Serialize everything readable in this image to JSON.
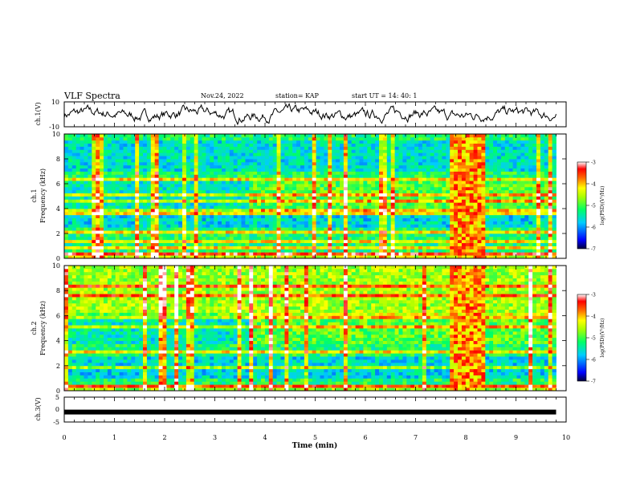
{
  "header": {
    "title": "VLF Spectra",
    "date": "Nov.24, 2022",
    "station": "station= KAP",
    "start": "start  UT =   14: 40: 1"
  },
  "chart_data": [
    {
      "type": "line",
      "panel": "ch1-waveform",
      "ylabel": "ch.1(V)",
      "ylim": [
        -10,
        10
      ],
      "yticks": [
        "10",
        "-10"
      ],
      "xlim": [
        0,
        10
      ],
      "series": [
        {
          "values_range": [
            -6,
            6
          ]
        }
      ]
    },
    {
      "type": "heatmap",
      "panel": "ch1-spectrogram",
      "ylabel": "ch.1\nFrequency (kHz)",
      "ylim": [
        0,
        10
      ],
      "yticks": [
        "0",
        "2",
        "4",
        "6",
        "8",
        "10"
      ],
      "xlim": [
        0,
        10
      ],
      "colorbar": {
        "label": "log(PSD)(V²/Hz)",
        "range": [
          -7,
          -3
        ],
        "ticks": [
          "-3",
          "-4",
          "-5",
          "-6",
          "-7"
        ]
      },
      "features": {
        "bright_band_time": [
          7.7,
          8.35
        ],
        "regime_change_time": 3.7
      }
    },
    {
      "type": "heatmap",
      "panel": "ch2-spectrogram",
      "ylabel": "ch.2\nFrequency (kHz)",
      "ylim": [
        0,
        10
      ],
      "yticks": [
        "0",
        "2",
        "4",
        "6",
        "8",
        "10"
      ],
      "xlim": [
        0,
        10
      ],
      "colorbar": {
        "label": "log(PSD)(V²/Hz)",
        "range": [
          -7,
          -3
        ],
        "ticks": [
          "-3",
          "-4",
          "-5",
          "-6",
          "-7"
        ]
      },
      "features": {
        "bright_band_time": [
          7.7,
          8.35
        ],
        "regime_change_time": 3.7
      }
    },
    {
      "type": "line",
      "panel": "ch3-waveform",
      "ylabel": "ch.3(V)",
      "ylim": [
        -5,
        5
      ],
      "yticks": [
        "5",
        "0",
        "-5"
      ],
      "xlim": [
        0,
        10
      ],
      "series": [
        {
          "values": [
            -1,
            -1
          ]
        }
      ]
    }
  ],
  "xaxis": {
    "label": "Time  (min)",
    "ticks": [
      "0",
      "1",
      "2",
      "3",
      "4",
      "5",
      "6",
      "7",
      "8",
      "9",
      "10"
    ]
  },
  "colors": {
    "line": "#000000",
    "colormap": [
      "#00007f",
      "#0000ff",
      "#00c8ff",
      "#00ff7f",
      "#7fff00",
      "#ffff00",
      "#ff7f00",
      "#ff0000",
      "#ffffff"
    ]
  }
}
